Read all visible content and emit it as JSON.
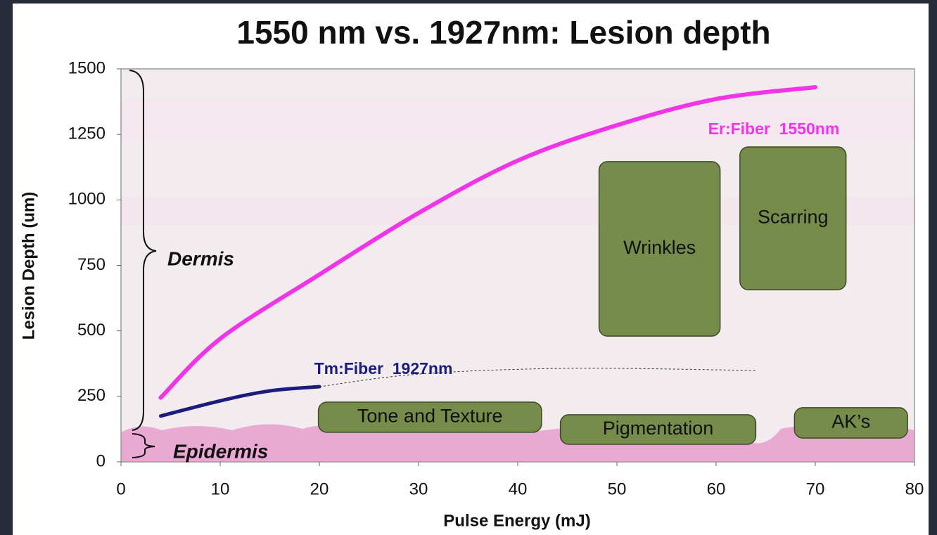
{
  "chart_data": {
    "type": "line",
    "title": "1550 nm vs. 1927nm: Lesion depth",
    "x_label": "Pulse Energy (mJ)",
    "y_label": "Lesion Depth  (um)",
    "xlim": [
      0,
      80
    ],
    "xticks": [
      0,
      10,
      20,
      30,
      40,
      50,
      60,
      70,
      80
    ],
    "ylim": [
      0,
      1500
    ],
    "yticks": [
      0,
      250,
      500,
      750,
      1000,
      1250,
      1500
    ],
    "series": [
      {
        "name": "Er:Fiber  1550nm",
        "color": "#f234e8",
        "x": [
          4,
          10,
          20,
          30,
          40,
          50,
          60,
          70
        ],
        "values": [
          245,
          470,
          715,
          950,
          1150,
          1285,
          1385,
          1430
        ]
      },
      {
        "name": "Tm:Fiber  1927nm",
        "color": "#1c1c7e",
        "x": [
          4,
          10,
          15,
          20
        ],
        "values": [
          175,
          233,
          271,
          287
        ],
        "extension": {
          "x": [
            20,
            30,
            45,
            64
          ],
          "values": [
            287,
            335,
            357,
            349
          ]
        }
      }
    ],
    "regions": [
      {
        "label": "Wrinkles",
        "x": [
          48.2,
          60.4
        ],
        "y": [
          480,
          1146
        ]
      },
      {
        "label": "Scarring",
        "x": [
          62.4,
          73.1
        ],
        "y": [
          657,
          1202
        ]
      },
      {
        "label": "Tone and Texture",
        "x": [
          19.9,
          42.4
        ],
        "y": [
          113,
          228
        ]
      },
      {
        "label": "Pigmentation",
        "x": [
          44.3,
          64.0
        ],
        "y": [
          67,
          180
        ]
      },
      {
        "label": "AK’s",
        "x": [
          67.9,
          79.3
        ],
        "y": [
          91,
          207
        ]
      }
    ],
    "layers": [
      {
        "label": "Dermis"
      },
      {
        "label": "Epidermis"
      }
    ]
  }
}
